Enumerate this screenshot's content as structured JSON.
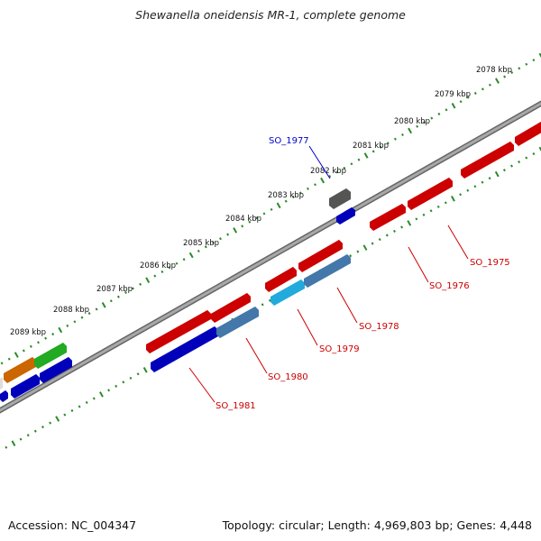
{
  "title": "Shewanella oneidensis MR-1, complete genome",
  "footer": {
    "accession": "Accession: NC_004347",
    "summary": "Topology: circular; Length: 4,969,803 bp; Genes: 4,448"
  },
  "scale_labels": [
    "2078 kbp",
    "2079 kbp",
    "2080 kbp",
    "2081 kbp",
    "2082 kbp",
    "2083 kbp",
    "2084 kbp",
    "2085 kbp",
    "2086 kbp",
    "2087 kbp",
    "2088 kbp",
    "2089 kbp"
  ],
  "gene_labels": [
    {
      "text": "SO_1977",
      "color": "#0000cc"
    },
    {
      "text": "SO_1975",
      "color": "#cc0000"
    },
    {
      "text": "SO_1976",
      "color": "#cc0000"
    },
    {
      "text": "SO_1978",
      "color": "#cc0000"
    },
    {
      "text": "SO_1979",
      "color": "#cc0000"
    },
    {
      "text": "SO_1980",
      "color": "#cc0000"
    },
    {
      "text": "SO_1981",
      "color": "#cc0000"
    }
  ],
  "colors": {
    "backbone": "#888888",
    "ticks": "#2a8a2a",
    "red": "#ee1111",
    "blue": "#1111dd",
    "cyan": "#33bbee",
    "steel": "#5588bb",
    "gray": "#666666",
    "orange": "#ee8811",
    "green": "#44bb33"
  }
}
